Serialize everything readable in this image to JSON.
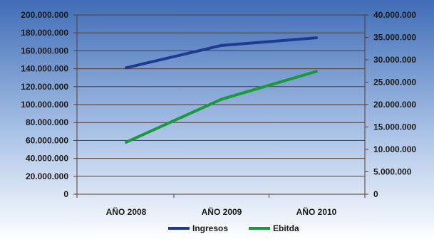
{
  "chart_data": {
    "type": "line",
    "categories": [
      "AÑO 2008",
      "AÑO 2009",
      "AÑO 2010"
    ],
    "series": [
      {
        "name": "Ingresos",
        "axis": "left",
        "color": "#1f3b8f",
        "values": [
          141000000,
          166000000,
          174500000
        ]
      },
      {
        "name": "Ebitda",
        "axis": "right",
        "color": "#1a9a3a",
        "values": [
          11600000,
          21200000,
          27400000
        ]
      }
    ],
    "y_left": {
      "ylim": [
        0,
        200000000
      ],
      "ticks": [
        0,
        20000000,
        40000000,
        60000000,
        80000000,
        100000000,
        120000000,
        140000000,
        160000000,
        180000000,
        200000000
      ],
      "tick_labels": [
        "0",
        "20.000.000",
        "40.000.000",
        "60.000.000",
        "80.000.000",
        "100.000.000",
        "120.000.000",
        "140.000.000",
        "160.000.000",
        "180.000.000",
        "200.000.000"
      ]
    },
    "y_right": {
      "ylim": [
        0,
        40000000
      ],
      "ticks": [
        0,
        5000000,
        10000000,
        15000000,
        20000000,
        25000000,
        30000000,
        35000000,
        40000000
      ],
      "tick_labels": [
        "0",
        "5.000.000",
        "10.000.000",
        "15.000.000",
        "20.000.000",
        "25.000.000",
        "30.000.000",
        "35.000.000",
        "40.000.000"
      ]
    },
    "grid": true,
    "legend_position": "bottom",
    "title": "",
    "xlabel": "",
    "ylabel": "",
    "colors": {
      "background_top": "#3f6db7",
      "background_bottom": "#ffffff",
      "gridline": "#5a3a2a",
      "axis": "#5a3a2a"
    }
  }
}
